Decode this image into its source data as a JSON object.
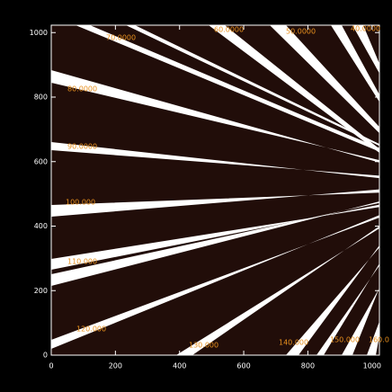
{
  "chart_data": {
    "type": "image",
    "xlim": [
      0,
      1023
    ],
    "ylim": [
      0,
      1023
    ],
    "xticks": [
      0,
      200,
      400,
      600,
      800,
      1000
    ],
    "yticks": [
      0,
      200,
      400,
      600,
      800,
      1000
    ],
    "annotations": [
      "40.0000",
      "50.0000",
      "60.0000",
      "70.0000",
      "80.0000",
      "90.0000",
      "100.000",
      "110.000",
      "120.000",
      "130.000",
      "140.000",
      "150.000",
      "160.0"
    ]
  }
}
